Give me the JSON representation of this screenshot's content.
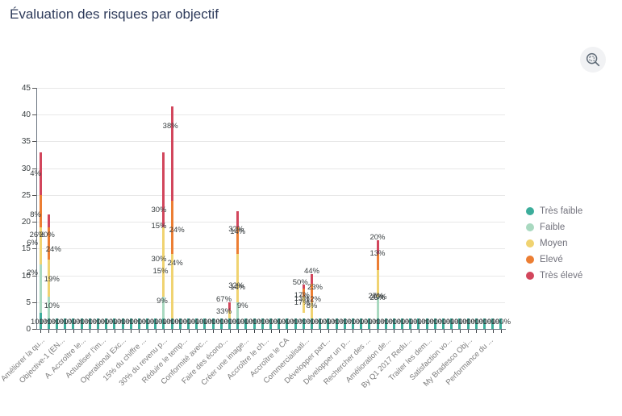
{
  "page": {
    "title": "Évaluation des risques par objectif"
  },
  "toolbar": {
    "zoom_button": {
      "icon": "zoom-selection-icon"
    }
  },
  "legend": {
    "position": "right",
    "items": [
      {
        "label": "Très faible",
        "color": "#3cad9b"
      },
      {
        "label": "Faible",
        "color": "#a9d9c0"
      },
      {
        "label": "Moyen",
        "color": "#f0d371"
      },
      {
        "label": "Elevé",
        "color": "#ec7e33"
      },
      {
        "label": "Très élevé",
        "color": "#d2465c"
      }
    ]
  },
  "chart_data": {
    "type": "bar",
    "stacked": true,
    "title": "Évaluation des risques par objectif",
    "xlabel": "",
    "ylabel": "",
    "ylim": [
      0,
      45
    ],
    "yticks": [
      0,
      5,
      10,
      15,
      20,
      25,
      30,
      35,
      40,
      45
    ],
    "grid": "horizontal",
    "legend_position": "right",
    "levels": {
      "Très faible": "#3cad9b",
      "Faible": "#a9d9c0",
      "Moyen": "#f0d371",
      "Elevé": "#ec7e33",
      "Très élevé": "#d2465c"
    },
    "n_columns": 57,
    "base_column": {
      "level": "Très faible",
      "value": 2,
      "data_label": "100%",
      "data_label_at": 1.3,
      "note": "every column shows a small Très-faible bar with an overlapping 100% label forming a dark band"
    },
    "x_labels_visible": [
      "Améliorer la qu...",
      "Objective-1 (EN...",
      "A. Accroître le...",
      "Actualiser l'im...",
      "Operational Exc...",
      "15% du chiffre ...",
      "30% du revenu p...",
      "Réduire le temp...",
      "Conformité avec...",
      "Faire des écono...",
      "Créer une image...",
      "Accroître le ch...",
      "Accroître le CA",
      "Commercialisati...",
      "Développer part...",
      "Développer un p...",
      "Rechercher des ...",
      "Amélioration de...",
      "By Q1 2017 Redu...",
      "Traiter les dem...",
      "Satisfaction vo...",
      "My Bradesco Obj...",
      "Performance du ..."
    ],
    "featured_columns": [
      {
        "col": 0,
        "segments": [
          {
            "level": "Très faible",
            "from": 0,
            "to": 3
          },
          {
            "level": "Faible",
            "from": 3,
            "to": 12
          },
          {
            "level": "Moyen",
            "from": 12,
            "to": 19
          },
          {
            "level": "Elevé",
            "from": 19,
            "to": 25
          },
          {
            "level": "Très élevé",
            "from": 25,
            "to": 33
          }
        ],
        "labels": [
          {
            "text": "4%",
            "at": 29,
            "dx": -6
          },
          {
            "text": "8%",
            "at": 21.3,
            "dx": -6
          },
          {
            "text": "26%",
            "at": 17.6,
            "dx": -4
          },
          {
            "text": "6%",
            "at": 16.1,
            "dx": -10
          },
          {
            "text": "2%",
            "at": 10.6,
            "dx": -10
          }
        ]
      },
      {
        "col": 1,
        "segments": [
          {
            "level": "Très faible",
            "from": 0,
            "to": 2
          },
          {
            "level": "Faible",
            "from": 2,
            "to": 6
          },
          {
            "level": "Moyen",
            "from": 6,
            "to": 13
          },
          {
            "level": "Elevé",
            "from": 13,
            "to": 19
          },
          {
            "level": "Très élevé",
            "from": 19,
            "to": 21.3
          }
        ],
        "labels": [
          {
            "text": "20%",
            "at": 17.6,
            "dx": -2
          },
          {
            "text": "24%",
            "at": 14.9,
            "dx": 6
          },
          {
            "text": "19%",
            "at": 9.4,
            "dx": 4
          },
          {
            "text": "10%",
            "at": 4.3,
            "dx": 4
          }
        ]
      },
      {
        "col": 15,
        "segments": [
          {
            "level": "Très faible",
            "from": 0,
            "to": 2
          },
          {
            "level": "Faible",
            "from": 2,
            "to": 6
          },
          {
            "level": "Moyen",
            "from": 6,
            "to": 19
          },
          {
            "level": "Très élevé",
            "from": 19,
            "to": 33
          }
        ],
        "labels": [
          {
            "text": "30%",
            "at": 22.2,
            "dx": -6
          },
          {
            "text": "15%",
            "at": 19.3,
            "dx": -6
          },
          {
            "text": "30%",
            "at": 13.1,
            "dx": -6
          },
          {
            "text": "15%",
            "at": 10.9,
            "dx": -4
          },
          {
            "text": "9%",
            "at": 5.3,
            "dx": -2
          }
        ]
      },
      {
        "col": 16,
        "segments": [
          {
            "level": "Très faible",
            "from": 0,
            "to": 2
          },
          {
            "level": "Moyen",
            "from": 2,
            "to": 14
          },
          {
            "level": "Elevé",
            "from": 14,
            "to": 24
          },
          {
            "level": "Très élevé",
            "from": 24,
            "to": 41.5
          }
        ],
        "labels": [
          {
            "text": "38%",
            "at": 38,
            "dx": -2
          },
          {
            "text": "24%",
            "at": 18.5,
            "dx": 6
          },
          {
            "text": "24%",
            "at": 12.3,
            "dx": 4
          }
        ]
      },
      {
        "col": 23,
        "segments": [
          {
            "level": "Très faible",
            "from": 0,
            "to": 2
          },
          {
            "level": "Moyen",
            "from": 2,
            "to": 3.5
          },
          {
            "level": "Très élevé",
            "from": 3.5,
            "to": 5
          }
        ],
        "labels": [
          {
            "text": "67%",
            "at": 5.6,
            "dx": -7
          },
          {
            "text": "33%",
            "at": 3.3,
            "dx": -7
          }
        ]
      },
      {
        "col": 24,
        "segments": [
          {
            "level": "Très faible",
            "from": 0,
            "to": 2
          },
          {
            "level": "Faible",
            "from": 2,
            "to": 5
          },
          {
            "level": "Moyen",
            "from": 5,
            "to": 14
          },
          {
            "level": "Elevé",
            "from": 14,
            "to": 19
          },
          {
            "level": "Très élevé",
            "from": 19,
            "to": 22
          }
        ],
        "labels": [
          {
            "text": "32%",
            "at": 18.6,
            "dx": -2
          },
          {
            "text": "14%",
            "at": 18.2,
            "dx": 0
          },
          {
            "text": "32%",
            "at": 8.2,
            "dx": -2
          },
          {
            "text": "14%",
            "at": 7.8,
            "dx": 0
          },
          {
            "text": "9%",
            "at": 4.4,
            "dx": 6
          }
        ]
      },
      {
        "col": 32,
        "segments": [
          {
            "level": "Très faible",
            "from": 0,
            "to": 2
          },
          {
            "level": "Moyen",
            "from": 3,
            "to": 6
          },
          {
            "level": "Elevé",
            "from": 6,
            "to": 7.5
          },
          {
            "level": "Très élevé",
            "from": 7.5,
            "to": 8.3
          }
        ],
        "labels": [
          {
            "text": "50%",
            "at": 8.7,
            "dx": -4
          },
          {
            "text": "17%",
            "at": 6.3,
            "dx": -2
          },
          {
            "text": "13%",
            "at": 5.7,
            "dx": -2
          },
          {
            "text": "17%",
            "at": 4.9,
            "dx": -2
          }
        ]
      },
      {
        "col": 33,
        "segments": [
          {
            "level": "Très faible",
            "from": 0,
            "to": 2
          },
          {
            "level": "Moyen",
            "from": 2,
            "to": 5
          },
          {
            "level": "Elevé",
            "from": 5,
            "to": 8.5
          },
          {
            "level": "Très élevé",
            "from": 8.5,
            "to": 10.2
          }
        ],
        "labels": [
          {
            "text": "44%",
            "at": 10.9,
            "dx": 0
          },
          {
            "text": "23%",
            "at": 7.9,
            "dx": 4
          },
          {
            "text": "12%",
            "at": 5.6,
            "dx": 2
          },
          {
            "text": "8%",
            "at": 4.3,
            "dx": 0
          }
        ]
      },
      {
        "col": 41,
        "segments": [
          {
            "level": "Très faible",
            "from": 0,
            "to": 2
          },
          {
            "level": "Faible",
            "from": 2,
            "to": 6
          },
          {
            "level": "Moyen",
            "from": 6,
            "to": 11
          },
          {
            "level": "Elevé",
            "from": 11,
            "to": 14
          },
          {
            "level": "Très élevé",
            "from": 14,
            "to": 16.5
          }
        ],
        "labels": [
          {
            "text": "20%",
            "at": 17.1,
            "dx": 0
          },
          {
            "text": "13%",
            "at": 14.2,
            "dx": 0
          },
          {
            "text": "27%",
            "at": 6.2,
            "dx": -2
          },
          {
            "text": "40%",
            "at": 6.0,
            "dx": 2
          },
          {
            "text": "25%",
            "at": 5.8,
            "dx": 0
          }
        ]
      }
    ]
  }
}
